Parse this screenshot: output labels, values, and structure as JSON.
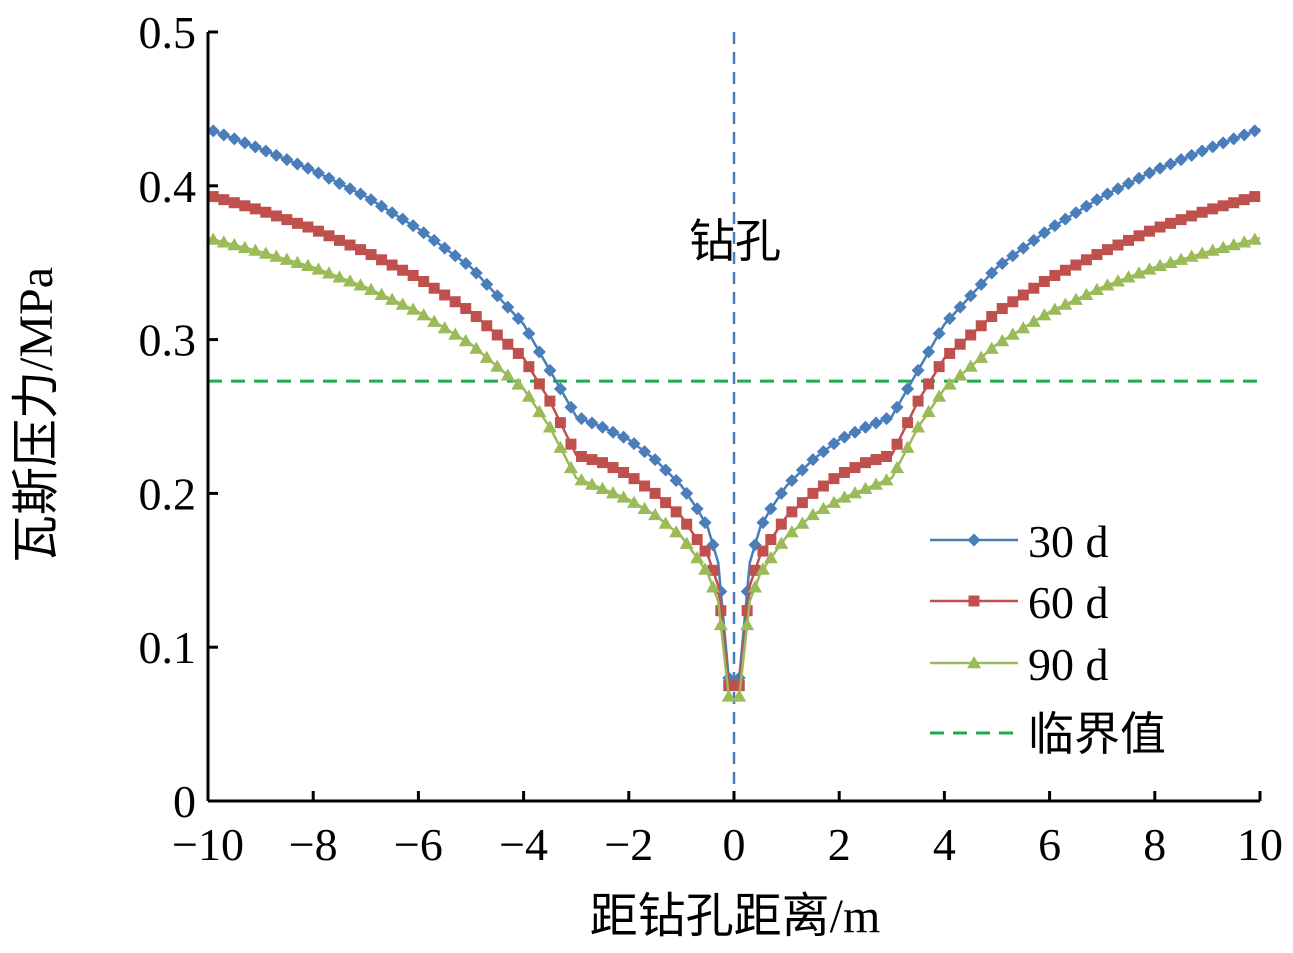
{
  "chart_data": {
    "type": "line",
    "xlabel": "距钻孔距离/m",
    "ylabel": "瓦斯压力/MPa",
    "xlim": [
      -10,
      10
    ],
    "ylim": [
      0,
      0.5
    ],
    "xticks": [
      -10,
      -8,
      -6,
      -4,
      -2,
      0,
      2,
      4,
      6,
      8,
      10
    ],
    "xtick_labels": [
      "−10",
      "−8",
      "−6",
      "−4",
      "−2",
      "0",
      "2",
      "4",
      "6",
      "8",
      "10"
    ],
    "yticks": [
      0,
      0.1,
      0.2,
      0.3,
      0.4,
      0.5
    ],
    "ytick_labels": [
      "0",
      "0.1",
      "0.2",
      "0.3",
      "0.4",
      "0.5"
    ],
    "annotation": "钻孔",
    "borehole_x": 0,
    "critical_value": 0.273,
    "legend_position": "bottom-right",
    "series": [
      {
        "name": "30 d",
        "color": "#4A7EBB",
        "marker": "diamond",
        "x": [
          0.1,
          0.3,
          0.5,
          0.7,
          1.0,
          1.5,
          2.0,
          2.5,
          3.0,
          3.5,
          4.0,
          5.0,
          6.0,
          7.0,
          8.0,
          9.0,
          10.0
        ],
        "values": [
          0.08,
          0.155,
          0.178,
          0.19,
          0.205,
          0.222,
          0.235,
          0.243,
          0.25,
          0.28,
          0.31,
          0.347,
          0.372,
          0.393,
          0.41,
          0.424,
          0.437
        ]
      },
      {
        "name": "60 d",
        "color": "#C0504D",
        "marker": "square",
        "x": [
          0.1,
          0.3,
          0.5,
          0.7,
          1.0,
          1.5,
          2.0,
          2.5,
          3.0,
          3.5,
          4.0,
          5.0,
          6.0,
          7.0,
          8.0,
          9.0,
          10.0
        ],
        "values": [
          0.075,
          0.14,
          0.16,
          0.17,
          0.185,
          0.2,
          0.212,
          0.22,
          0.225,
          0.26,
          0.288,
          0.318,
          0.34,
          0.357,
          0.372,
          0.384,
          0.394
        ]
      },
      {
        "name": "90 d",
        "color": "#9BBB59",
        "marker": "triangle",
        "x": [
          0.1,
          0.3,
          0.5,
          0.7,
          1.0,
          1.5,
          2.0,
          2.5,
          3.0,
          3.5,
          4.0,
          5.0,
          6.0,
          7.0,
          8.0,
          9.0,
          10.0
        ],
        "values": [
          0.068,
          0.13,
          0.148,
          0.158,
          0.172,
          0.186,
          0.196,
          0.203,
          0.21,
          0.243,
          0.268,
          0.297,
          0.318,
          0.334,
          0.347,
          0.357,
          0.366
        ]
      }
    ],
    "critical_line": {
      "name": "临界值",
      "color": "#1EAA50",
      "style": "dashed"
    },
    "borehole_line_color": "#4A7EBB"
  }
}
